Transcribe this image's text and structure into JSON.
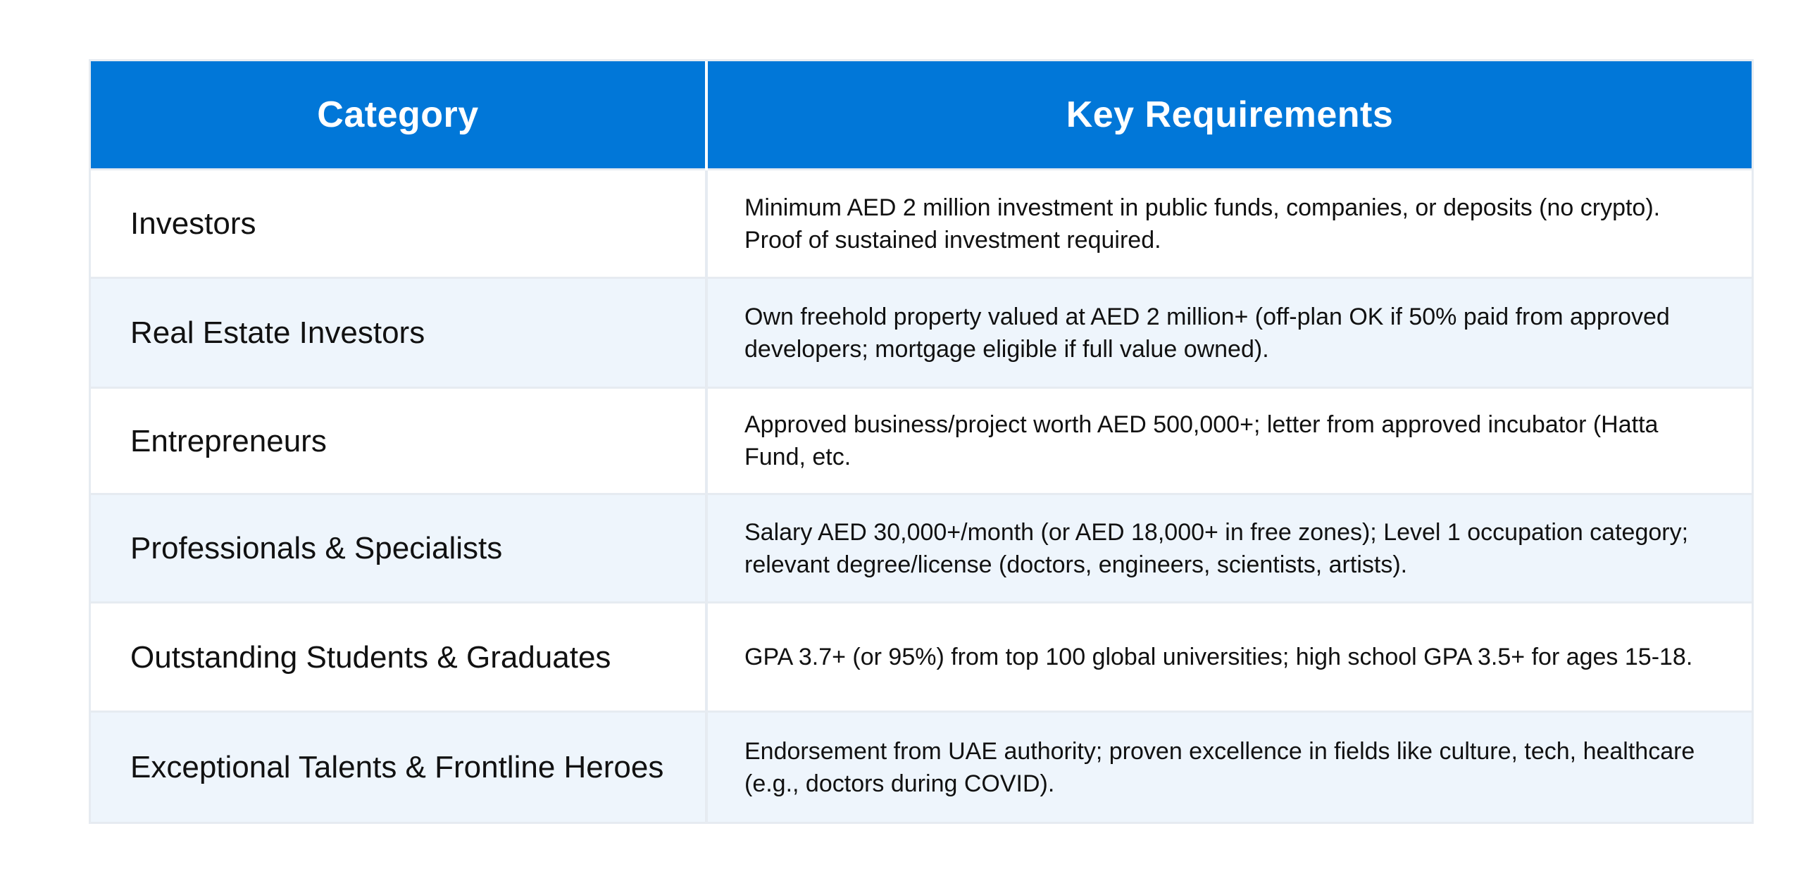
{
  "table": {
    "headers": {
      "category": "Category",
      "requirements": "Key Requirements"
    },
    "rows": [
      {
        "category": "Investors",
        "requirements": "Minimum AED 2 million investment in public funds, companies, or deposits (no crypto). Proof of sustained investment required."
      },
      {
        "category": "Real Estate Investors",
        "requirements": "Own freehold property valued at AED 2 million+ (off-plan OK if 50% paid from approved developers; mortgage eligible if full value owned)."
      },
      {
        "category": "Entrepreneurs",
        "requirements": "Approved business/project worth AED 500,000+; letter from approved incubator (Hatta Fund, etc."
      },
      {
        "category": "Professionals & Specialists",
        "requirements": "Salary AED 30,000+/month (or AED 18,000+ in free zones); Level 1 occupation category; relevant degree/license (doctors, engineers, scientists, artists)."
      },
      {
        "category": "Outstanding Students & Graduates",
        "requirements": "GPA 3.7+ (or 95%) from top 100 global universities; high school GPA 3.5+ for ages 15-18."
      },
      {
        "category": "Exceptional Talents & Frontline Heroes",
        "requirements": "Endorsement from UAE authority; proven excellence in fields like culture, tech, healthcare (e.g., doctors during COVID)."
      }
    ]
  },
  "colors": {
    "header_bg": "#0177d8",
    "header_text": "#ffffff",
    "stripe_bg": "#eef5fc",
    "border": "#e6ebf1"
  }
}
